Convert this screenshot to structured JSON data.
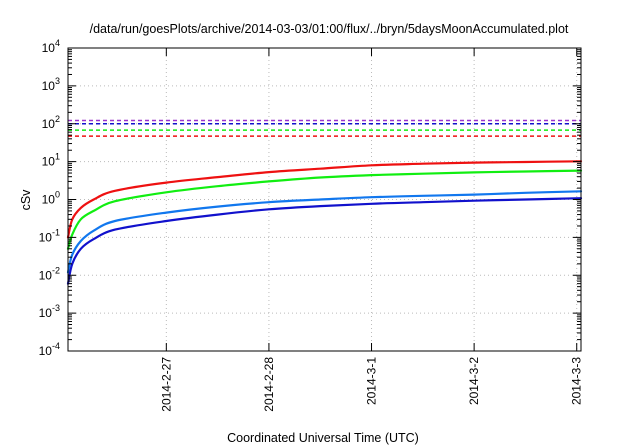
{
  "chart_data": {
    "type": "line",
    "title": "/data/run/goesPlots/archive/2014-03-03/01:00/flux/../bryn/5daysMoonAccumulated.plot",
    "xlabel": "Coordinated Universal Time (UTC)",
    "ylabel": "cSv",
    "y_scale": "log",
    "ylim": [
      0.0001,
      10000
    ],
    "xlim": [
      "2014-02-26 01:00",
      "2014-03-03 01:00"
    ],
    "grid": true,
    "legend": "none",
    "x_ticks": [
      "2014-2-27",
      "2014-2-28",
      "2014-3-1",
      "2014-3-2",
      "2014-3-3"
    ],
    "y_ticks": [
      {
        "base": "10",
        "exp": "-4",
        "value": 0.0001
      },
      {
        "base": "10",
        "exp": "-3",
        "value": 0.001
      },
      {
        "base": "10",
        "exp": "-2",
        "value": 0.01
      },
      {
        "base": "10",
        "exp": "-1",
        "value": 0.1
      },
      {
        "base": "10",
        "exp": "0",
        "value": 1
      },
      {
        "base": "10",
        "exp": "1",
        "value": 10
      },
      {
        "base": "10",
        "exp": "2",
        "value": 100
      },
      {
        "base": "10",
        "exp": "3",
        "value": 1000
      },
      {
        "base": "10",
        "exp": "4",
        "value": 10000
      }
    ],
    "series": [
      {
        "color": "#ee1111",
        "x": [
          "2014-02-26 01:00",
          "2014-02-26 02:00",
          "2014-02-26 04:00",
          "2014-02-26 07:00",
          "2014-02-26 12:00",
          "2014-02-27 00:00",
          "2014-02-27 12:00",
          "2014-02-28 00:00",
          "2014-02-28 12:00",
          "2014-03-01 00:00",
          "2014-03-01 12:00",
          "2014-03-02 00:00",
          "2014-03-02 12:00",
          "2014-03-03 01:00"
        ],
        "values": [
          0.1,
          0.3,
          0.6,
          1.0,
          1.7,
          2.8,
          3.9,
          5.3,
          6.5,
          8.0,
          8.8,
          9.4,
          9.8,
          10.2
        ]
      },
      {
        "color": "#11ee11",
        "x": [
          "2014-02-26 01:00",
          "2014-02-26 02:00",
          "2014-02-26 04:00",
          "2014-02-26 07:00",
          "2014-02-26 12:00",
          "2014-02-27 00:00",
          "2014-02-27 12:00",
          "2014-02-28 00:00",
          "2014-02-28 12:00",
          "2014-03-01 00:00",
          "2014-03-01 12:00",
          "2014-03-02 00:00",
          "2014-03-02 12:00",
          "2014-03-03 01:00"
        ],
        "values": [
          0.05,
          0.12,
          0.3,
          0.5,
          0.9,
          1.55,
          2.25,
          3.0,
          3.8,
          4.4,
          4.8,
          5.2,
          5.5,
          5.8
        ]
      },
      {
        "color": "#1177ee",
        "x": [
          "2014-02-26 01:00",
          "2014-02-26 02:00",
          "2014-02-26 04:00",
          "2014-02-26 07:00",
          "2014-02-26 12:00",
          "2014-02-27 00:00",
          "2014-02-27 12:00",
          "2014-02-28 00:00",
          "2014-02-28 12:00",
          "2014-03-01 00:00",
          "2014-03-01 12:00",
          "2014-03-02 00:00",
          "2014-03-02 12:00",
          "2014-03-03 01:00"
        ],
        "values": [
          0.012,
          0.035,
          0.08,
          0.15,
          0.27,
          0.45,
          0.65,
          0.85,
          1.0,
          1.15,
          1.25,
          1.35,
          1.5,
          1.65
        ]
      },
      {
        "color": "#1111cc",
        "x": [
          "2014-02-26 01:00",
          "2014-02-26 02:00",
          "2014-02-26 04:00",
          "2014-02-26 07:00",
          "2014-02-26 12:00",
          "2014-02-27 00:00",
          "2014-02-27 12:00",
          "2014-02-28 00:00",
          "2014-02-28 12:00",
          "2014-03-01 00:00",
          "2014-03-01 12:00",
          "2014-03-02 00:00",
          "2014-03-02 12:00",
          "2014-03-03 01:00"
        ],
        "values": [
          0.006,
          0.02,
          0.05,
          0.09,
          0.16,
          0.27,
          0.4,
          0.55,
          0.67,
          0.77,
          0.85,
          0.93,
          1.0,
          1.08
        ]
      }
    ],
    "reference_lines": [
      {
        "color": "#9933cc",
        "value": 122
      },
      {
        "color": "#1111cc",
        "value": 100
      },
      {
        "color": "#11ee11",
        "value": 68
      },
      {
        "color": "#ee1111",
        "value": 47
      }
    ]
  }
}
